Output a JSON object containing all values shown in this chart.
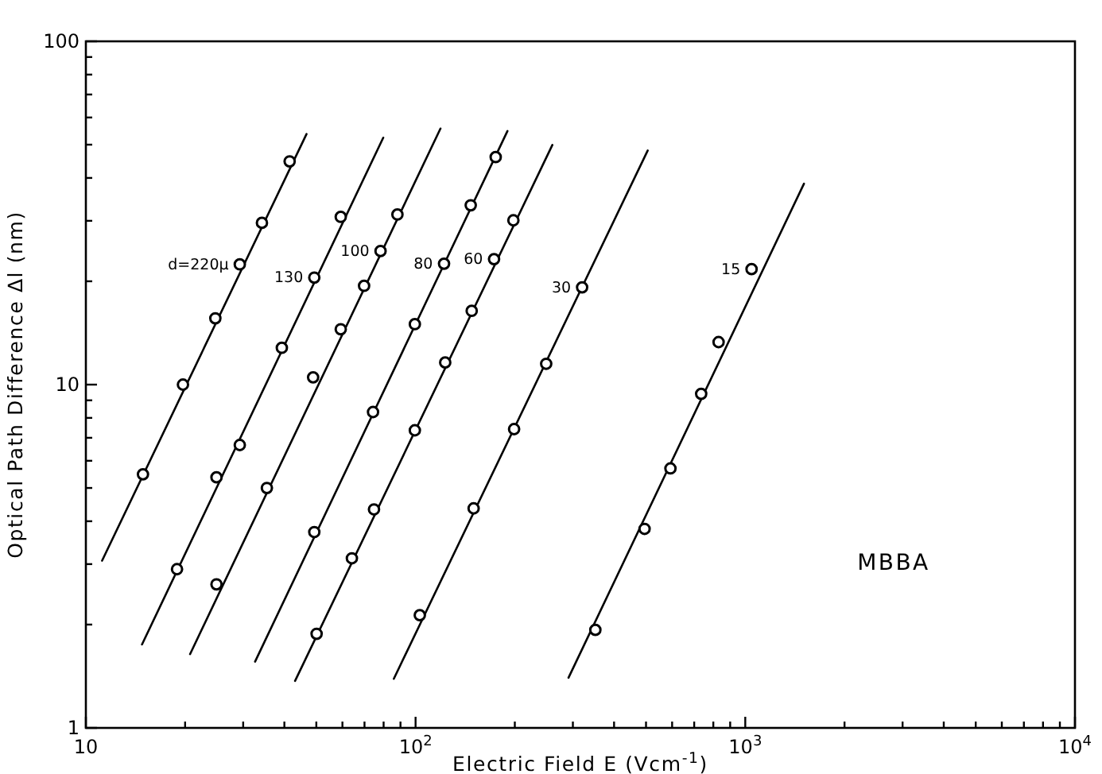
{
  "chart_data": {
    "type": "scatter",
    "xlabel": "Electric Field E (Vcm$^{-1}$)",
    "ylabel": "Optical Path Difference Δl (nm)",
    "log": "xy",
    "grid": false,
    "xlim": [
      10,
      10000
    ],
    "ylim": [
      1,
      100
    ],
    "xticks": [
      10,
      {
        "value": 20,
        "label": null
      },
      {
        "value": 30,
        "label": null
      },
      {
        "value": 40,
        "label": null
      },
      {
        "value": 50,
        "label": null
      },
      {
        "value": 60,
        "label": null
      },
      {
        "value": 70,
        "label": null
      },
      {
        "value": 80,
        "label": null
      },
      {
        "value": 90,
        "label": null
      },
      {
        "value": 100,
        "label": "10$^{2}$"
      },
      {
        "value": 200,
        "label": null
      },
      {
        "value": 300,
        "label": null
      },
      {
        "value": 400,
        "label": null
      },
      {
        "value": 500,
        "label": null
      },
      {
        "value": 600,
        "label": null
      },
      {
        "value": 700,
        "label": null
      },
      {
        "value": 800,
        "label": null
      },
      {
        "value": 900,
        "label": null
      },
      {
        "value": 1000,
        "label": "10$^{3}$"
      },
      {
        "value": 2000,
        "label": null
      },
      {
        "value": 3000,
        "label": null
      },
      {
        "value": 4000,
        "label": null
      },
      {
        "value": 5000,
        "label": null
      },
      {
        "value": 6000,
        "label": null
      },
      {
        "value": 7000,
        "label": null
      },
      {
        "value": 8000,
        "label": null
      },
      {
        "value": 9000,
        "label": null
      },
      {
        "value": 10000,
        "label": "10$^{4}$"
      }
    ],
    "yticks": [
      1,
      {
        "value": 2,
        "label": null
      },
      {
        "value": 3,
        "label": null
      },
      {
        "value": 4,
        "label": null
      },
      {
        "value": 5,
        "label": null
      },
      {
        "value": 6,
        "label": null
      },
      {
        "value": 7,
        "label": null
      },
      {
        "value": 8,
        "label": null
      },
      {
        "value": 9,
        "label": null
      },
      10,
      {
        "value": 20,
        "label": null
      },
      {
        "value": 30,
        "label": null
      },
      {
        "value": 40,
        "label": null
      },
      {
        "value": 50,
        "label": null
      },
      {
        "value": 60,
        "label": null
      },
      {
        "value": 70,
        "label": null
      },
      {
        "value": 80,
        "label": null
      },
      {
        "value": 90,
        "label": null
      },
      100
    ],
    "annotations": [
      "MBBA"
    ],
    "series": [
      {
        "type": "line",
        "color": "#000000",
        "line_style": "solid",
        "x": [
          11.2,
          46.7
        ],
        "values": [
          3.07,
          53.7
        ]
      },
      {
        "name": "d=220μ",
        "color": "#000000",
        "marker": "circle",
        "x": [
          14.9,
          19.7,
          24.7,
          29.3,
          34.2,
          41.5
        ],
        "values": [
          5.48,
          10,
          15.6,
          22.4,
          29.6,
          44.7
        ]
      },
      {
        "type": "line",
        "color": "#000000",
        "line_style": "solid",
        "x": [
          14.8,
          79.8
        ],
        "values": [
          1.75,
          52.4
        ]
      },
      {
        "name": "130",
        "color": "#000000",
        "marker": "circle",
        "x": [
          18.9,
          24.9,
          29.3,
          39.3,
          49.3,
          59.3
        ],
        "values": [
          2.9,
          5.37,
          6.67,
          12.8,
          20.5,
          30.8
        ]
      },
      {
        "type": "line",
        "color": "#000000",
        "line_style": "solid",
        "x": [
          20.7,
          119
        ],
        "values": [
          1.64,
          55.7
        ]
      },
      {
        "name": "100",
        "color": "#000000",
        "marker": "circle",
        "x": [
          24.9,
          35.4,
          48.9,
          59.3,
          69.8,
          78.3,
          88.1
        ],
        "values": [
          2.62,
          5,
          10.5,
          14.5,
          19.4,
          24.5,
          31.3
        ]
      },
      {
        "type": "line",
        "color": "#000000",
        "line_style": "solid",
        "x": [
          32.6,
          190
        ],
        "values": [
          1.56,
          54.8
        ]
      },
      {
        "name": "80",
        "color": "#000000",
        "marker": "circle",
        "x": [
          49.3,
          74.3,
          99.5,
          122,
          147,
          175
        ],
        "values": [
          3.72,
          8.32,
          15,
          22.5,
          33.3,
          46
        ]
      },
      {
        "type": "line",
        "color": "#000000",
        "line_style": "solid",
        "x": [
          43.1,
          260
        ],
        "values": [
          1.37,
          49.9
        ]
      },
      {
        "name": "60",
        "color": "#000000",
        "marker": "circle",
        "x": [
          50.1,
          64.1,
          74.8,
          99.5,
          123,
          148,
          173,
          198
        ],
        "values": [
          1.88,
          3.12,
          4.33,
          7.36,
          11.6,
          16.4,
          23.2,
          30.1
        ]
      },
      {
        "type": "line",
        "color": "#000000",
        "line_style": "solid",
        "x": [
          85.9,
          506
        ],
        "values": [
          1.39,
          48.1
        ]
      },
      {
        "name": "30",
        "color": "#000000",
        "marker": "circle",
        "x": [
          103,
          150,
          199,
          249,
          320
        ],
        "values": [
          2.13,
          4.36,
          7.42,
          11.5,
          19.2
        ]
      },
      {
        "type": "line",
        "color": "#000000",
        "line_style": "solid",
        "x": [
          291,
          1507
        ],
        "values": [
          1.4,
          38.5
        ]
      },
      {
        "name": "15",
        "color": "#000000",
        "marker": "circle",
        "x": [
          351,
          495,
          593,
          735,
          830,
          1045
        ],
        "values": [
          1.93,
          3.8,
          5.7,
          9.4,
          13.3,
          21.7
        ]
      }
    ]
  }
}
